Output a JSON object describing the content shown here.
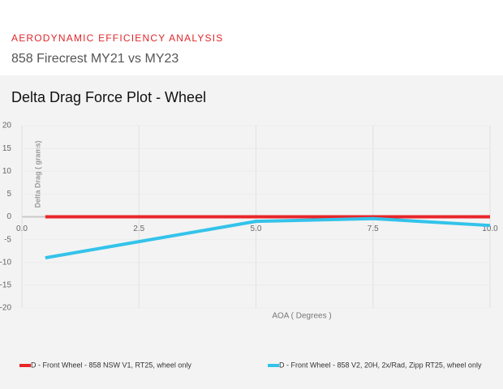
{
  "header": {
    "title": "AERODYNAMIC EFFICIENCY ANALYSIS",
    "subtitle": "858 Firecrest MY21 vs MY23"
  },
  "chart_data": {
    "type": "line",
    "title": "Delta Drag Force Plot - Wheel",
    "x_label": "AOA ( Degrees )",
    "y_label": "Delta Drag ( grams)",
    "x": [
      0.5,
      5,
      7.5,
      10
    ],
    "series": [
      {
        "name": "D - Front Wheel - 858 NSW V1, RT25, wheel only",
        "color": "#e8262b",
        "values": [
          0,
          0,
          0,
          0
        ]
      },
      {
        "name": "D - Front Wheel - 858 V2, 20H, 2x/Rad, Zipp RT25, wheel only",
        "color": "#33c3ea",
        "values": [
          -9,
          -1,
          -0.4,
          -1.9
        ]
      }
    ],
    "xlim": [
      0,
      10
    ],
    "ylim": [
      -20,
      20
    ],
    "xticks": [
      {
        "value": 0,
        "label": "0.0"
      },
      2.5,
      {
        "value": 5,
        "label": "5.0"
      },
      7.5,
      {
        "value": 10,
        "label": "10.0"
      }
    ],
    "yticks": [
      20,
      15,
      10,
      5,
      0,
      -5,
      -10,
      -15,
      -20
    ],
    "grid": true
  }
}
